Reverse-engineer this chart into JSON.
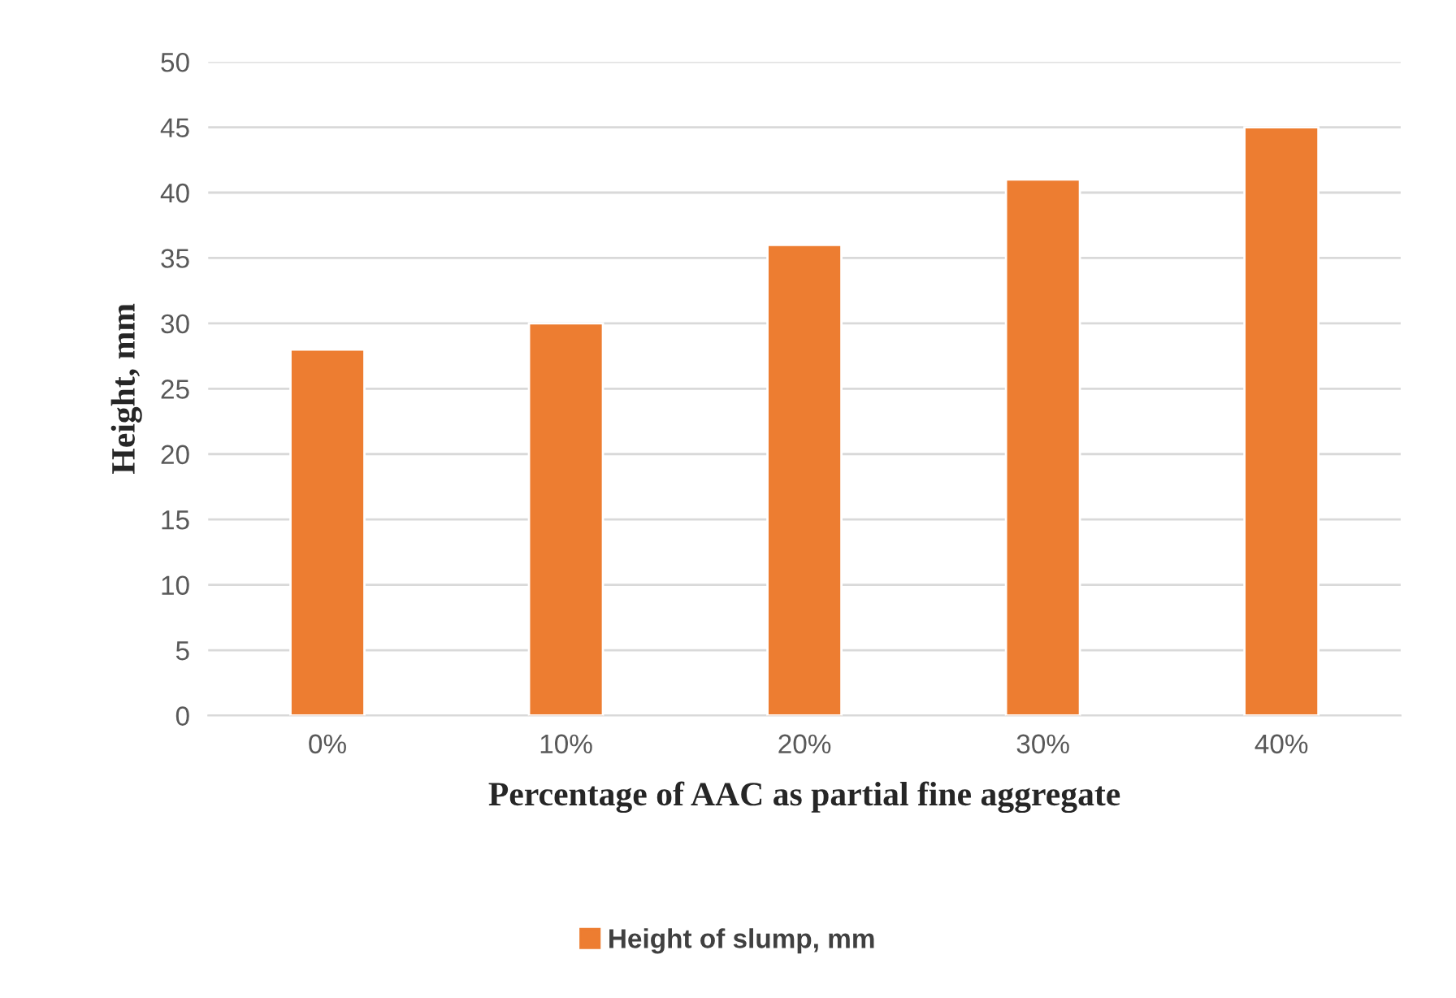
{
  "chart_data": {
    "type": "bar",
    "xlabel": "Percentage of AAC as partial fine aggregate",
    "ylabel": "Height, mm",
    "categories": [
      "0%",
      "10%",
      "20%",
      "30%",
      "40%"
    ],
    "series": [
      {
        "name": "Height of slump, mm",
        "color": "#ed7d31",
        "values": [
          28,
          30,
          36,
          41,
          45
        ]
      }
    ],
    "ylim": [
      0,
      50
    ],
    "yticks": [
      0,
      5,
      10,
      15,
      20,
      25,
      30,
      35,
      40,
      45,
      50
    ],
    "grid": "y",
    "legend": "bottom"
  }
}
